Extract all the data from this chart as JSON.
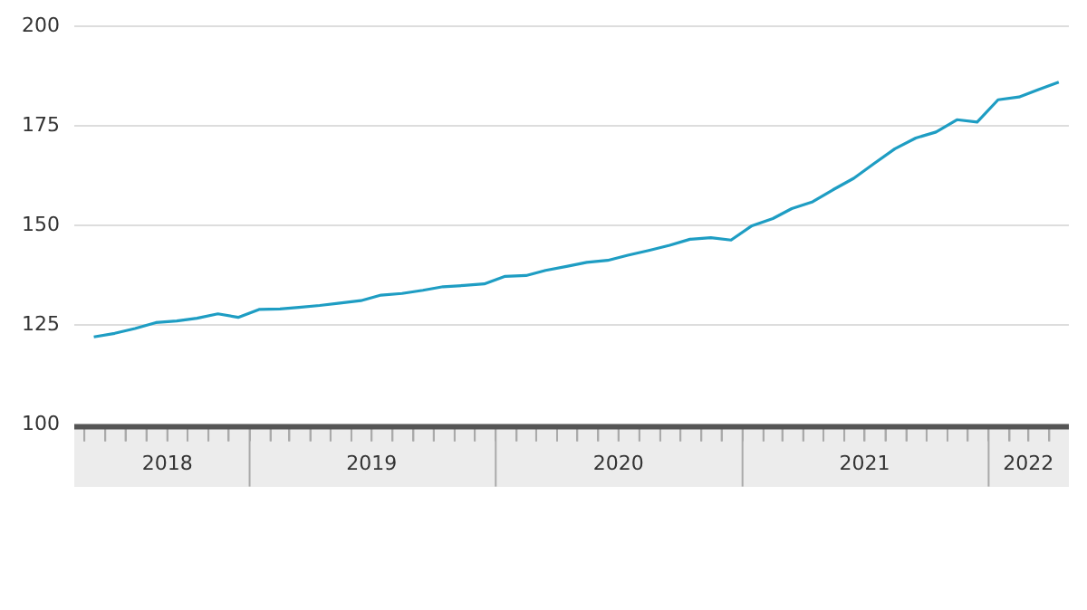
{
  "chart_data": {
    "type": "line",
    "color": "#1e9dc3",
    "x": [
      "2018-05-15",
      "2018-06-15",
      "2018-07-15",
      "2018-08-15",
      "2018-09-15",
      "2018-10-15",
      "2018-11-15",
      "2018-12-15",
      "2019-01-15",
      "2019-02-15",
      "2019-03-15",
      "2019-04-15",
      "2019-05-15",
      "2019-06-15",
      "2019-07-15",
      "2019-08-15",
      "2019-09-15",
      "2019-10-15",
      "2019-11-15",
      "2019-12-15",
      "2020-01-15",
      "2020-02-15",
      "2020-03-15",
      "2020-04-15",
      "2020-05-15",
      "2020-06-15",
      "2020-07-15",
      "2020-08-15",
      "2020-09-15",
      "2020-10-15",
      "2020-11-15",
      "2020-12-15",
      "2021-01-15",
      "2021-02-15",
      "2021-03-15",
      "2021-04-15",
      "2021-05-15",
      "2021-06-15",
      "2021-07-15",
      "2021-08-15",
      "2021-09-15",
      "2021-10-15",
      "2021-11-15",
      "2021-12-15",
      "2022-01-15",
      "2022-02-15",
      "2022-03-15",
      "2022-04-15"
    ],
    "values": [
      122.1,
      123.0,
      124.2,
      125.7,
      126.1,
      126.8,
      127.9,
      127.0,
      129.0,
      129.1,
      129.5,
      130.0,
      130.6,
      131.2,
      132.6,
      133.0,
      133.8,
      134.7,
      135.0,
      135.4,
      137.3,
      137.5,
      138.8,
      139.8,
      140.8,
      141.3,
      142.6,
      143.8,
      145.1,
      146.6,
      147.0,
      146.4,
      150.0,
      151.8,
      154.3,
      156.0,
      159.0,
      161.9,
      165.6,
      169.3,
      172.0,
      173.5,
      176.6,
      176.0,
      181.6,
      182.3,
      184.1,
      186.0
    ],
    "xlim": [
      "2018-04-16",
      "2022-04-30"
    ],
    "xticks": [
      {
        "value": "2018-05-01",
        "label": null
      },
      {
        "value": "2018-06-01",
        "label": null
      },
      {
        "value": "2018-07-01",
        "label": null
      },
      {
        "value": "2018-08-01",
        "label": null
      },
      {
        "value": "2018-09-01",
        "label": "2018"
      },
      {
        "value": "2018-10-01",
        "label": null
      },
      {
        "value": "2018-11-01",
        "label": null
      },
      {
        "value": "2018-12-01",
        "label": null
      },
      {
        "value": "2019-01-01",
        "label": null
      },
      {
        "value": "2019-02-01",
        "label": null
      },
      {
        "value": "2019-03-01",
        "label": null
      },
      {
        "value": "2019-04-01",
        "label": null
      },
      {
        "value": "2019-05-01",
        "label": null
      },
      {
        "value": "2019-06-01",
        "label": null
      },
      {
        "value": "2019-07-01",
        "label": "2019"
      },
      {
        "value": "2019-08-01",
        "label": null
      },
      {
        "value": "2019-09-01",
        "label": null
      },
      {
        "value": "2019-10-01",
        "label": null
      },
      {
        "value": "2019-11-01",
        "label": null
      },
      {
        "value": "2019-12-01",
        "label": null
      },
      {
        "value": "2020-01-01",
        "label": null
      },
      {
        "value": "2020-02-01",
        "label": null
      },
      {
        "value": "2020-03-01",
        "label": null
      },
      {
        "value": "2020-04-01",
        "label": null
      },
      {
        "value": "2020-05-01",
        "label": null
      },
      {
        "value": "2020-06-01",
        "label": null
      },
      {
        "value": "2020-07-01",
        "label": "2020"
      },
      {
        "value": "2020-08-01",
        "label": null
      },
      {
        "value": "2020-09-01",
        "label": null
      },
      {
        "value": "2020-10-01",
        "label": null
      },
      {
        "value": "2020-11-01",
        "label": null
      },
      {
        "value": "2020-12-01",
        "label": null
      },
      {
        "value": "2021-01-01",
        "label": null
      },
      {
        "value": "2021-02-01",
        "label": null
      },
      {
        "value": "2021-03-01",
        "label": null
      },
      {
        "value": "2021-04-01",
        "label": null
      },
      {
        "value": "2021-05-01",
        "label": null
      },
      {
        "value": "2021-06-01",
        "label": null
      },
      {
        "value": "2021-07-01",
        "label": "2021"
      },
      {
        "value": "2021-08-01",
        "label": null
      },
      {
        "value": "2021-09-01",
        "label": null
      },
      {
        "value": "2021-10-01",
        "label": null
      },
      {
        "value": "2021-11-01",
        "label": null
      },
      {
        "value": "2021-12-01",
        "label": null
      },
      {
        "value": "2022-01-01",
        "label": null
      },
      {
        "value": "2022-02-01",
        "label": null
      },
      {
        "value": "2022-03-01",
        "label": "2022"
      },
      {
        "value": "2022-04-01",
        "label": null
      }
    ],
    "ylim": [
      100,
      200
    ],
    "yticks": [
      100,
      125,
      150,
      175,
      200
    ],
    "grid": "y",
    "legend": false,
    "marker": "none",
    "line_style": "solid"
  }
}
